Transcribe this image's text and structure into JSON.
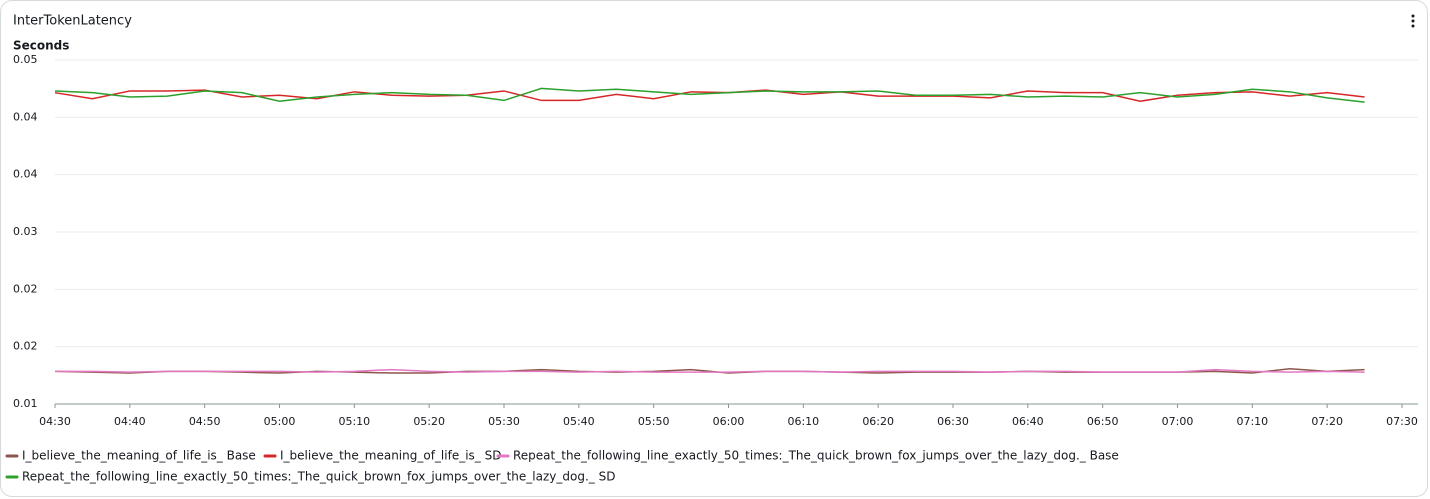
{
  "chart_data": {
    "type": "line",
    "title": "InterTokenLatency",
    "y_label": "Seconds",
    "x": [
      "04:30",
      "04:35",
      "04:40",
      "04:45",
      "04:50",
      "04:55",
      "05:00",
      "05:05",
      "05:10",
      "05:15",
      "05:20",
      "05:25",
      "05:30",
      "05:35",
      "05:40",
      "05:45",
      "05:50",
      "05:55",
      "06:00",
      "06:05",
      "06:10",
      "06:15",
      "06:20",
      "06:25",
      "06:30",
      "06:35",
      "06:40",
      "06:45",
      "06:50",
      "06:55",
      "07:00",
      "07:05",
      "07:10",
      "07:15",
      "07:20",
      "07:25"
    ],
    "xlim": [
      "04:30",
      "07:30"
    ],
    "xticks": [
      "04:30",
      "04:40",
      "04:50",
      "05:00",
      "05:10",
      "05:20",
      "05:30",
      "05:40",
      "05:50",
      "06:00",
      "06:10",
      "06:20",
      "06:30",
      "06:40",
      "06:50",
      "07:00",
      "07:10",
      "07:20",
      "07:30"
    ],
    "ylim": [
      0.01,
      0.05
    ],
    "yticks": [
      0.01,
      {
        "value": 0.01667,
        "label": "0.02"
      },
      {
        "value": 0.02333,
        "label": "0.02"
      },
      0.03,
      {
        "value": 0.03667,
        "label": "0.04"
      },
      {
        "value": 0.04333,
        "label": "0.04"
      },
      0.05
    ],
    "grid": true,
    "series": [
      {
        "name": "I_believe_the_meaning_of_life_is_ Base",
        "color": "#8c564b",
        "values": [
          0.0138,
          0.0137,
          0.0136,
          0.0138,
          0.0138,
          0.0137,
          0.0136,
          0.0138,
          0.0137,
          0.0136,
          0.0136,
          0.0138,
          0.0138,
          0.014,
          0.0138,
          0.0137,
          0.0138,
          0.014,
          0.0136,
          0.0138,
          0.0138,
          0.0137,
          0.0136,
          0.0137,
          0.0137,
          0.0137,
          0.0138,
          0.0137,
          0.0137,
          0.0137,
          0.0137,
          0.0138,
          0.0136,
          0.0141,
          0.0138,
          0.014
        ]
      },
      {
        "name": "I_believe_the_meaning_of_life_is_ SD",
        "color": "#d62728",
        "values": [
          0.0462,
          0.0455,
          0.0464,
          0.0464,
          0.0465,
          0.0457,
          0.0459,
          0.0455,
          0.0463,
          0.0459,
          0.0458,
          0.0459,
          0.0464,
          0.0453,
          0.0453,
          0.046,
          0.0455,
          0.0463,
          0.0462,
          0.0465,
          0.046,
          0.0463,
          0.0458,
          0.0458,
          0.0458,
          0.0456,
          0.0464,
          0.0462,
          0.0462,
          0.0452,
          0.0459,
          0.0462,
          0.0463,
          0.0458,
          0.0462,
          0.0457
        ]
      },
      {
        "name": "Repeat_the_following_line_exactly_50_times:_The_quick_brown_fox_jumps_over_the_lazy_dog._ Base",
        "color": "#e377c2",
        "values": [
          0.0138,
          0.0138,
          0.0137,
          0.0138,
          0.0138,
          0.0138,
          0.0138,
          0.0137,
          0.0138,
          0.014,
          0.0138,
          0.0137,
          0.0138,
          0.0138,
          0.0137,
          0.0138,
          0.0137,
          0.0137,
          0.0137,
          0.0138,
          0.0138,
          0.0137,
          0.0138,
          0.0138,
          0.0138,
          0.0137,
          0.0138,
          0.0138,
          0.0137,
          0.0137,
          0.0137,
          0.014,
          0.0138,
          0.0137,
          0.0138,
          0.0137
        ]
      },
      {
        "name": "Repeat_the_following_line_exactly_50_times:_The_quick_brown_fox_jumps_over_the_lazy_dog._ SD",
        "color": "#2ca02c",
        "values": [
          0.0464,
          0.0462,
          0.0457,
          0.0458,
          0.0464,
          0.0462,
          0.0452,
          0.0457,
          0.046,
          0.0462,
          0.046,
          0.0459,
          0.0453,
          0.0467,
          0.0464,
          0.0466,
          0.0463,
          0.046,
          0.0462,
          0.0464,
          0.0463,
          0.0463,
          0.0464,
          0.0459,
          0.0459,
          0.046,
          0.0457,
          0.0458,
          0.0457,
          0.0462,
          0.0457,
          0.046,
          0.0466,
          0.0463,
          0.0456,
          0.0451
        ]
      }
    ]
  }
}
